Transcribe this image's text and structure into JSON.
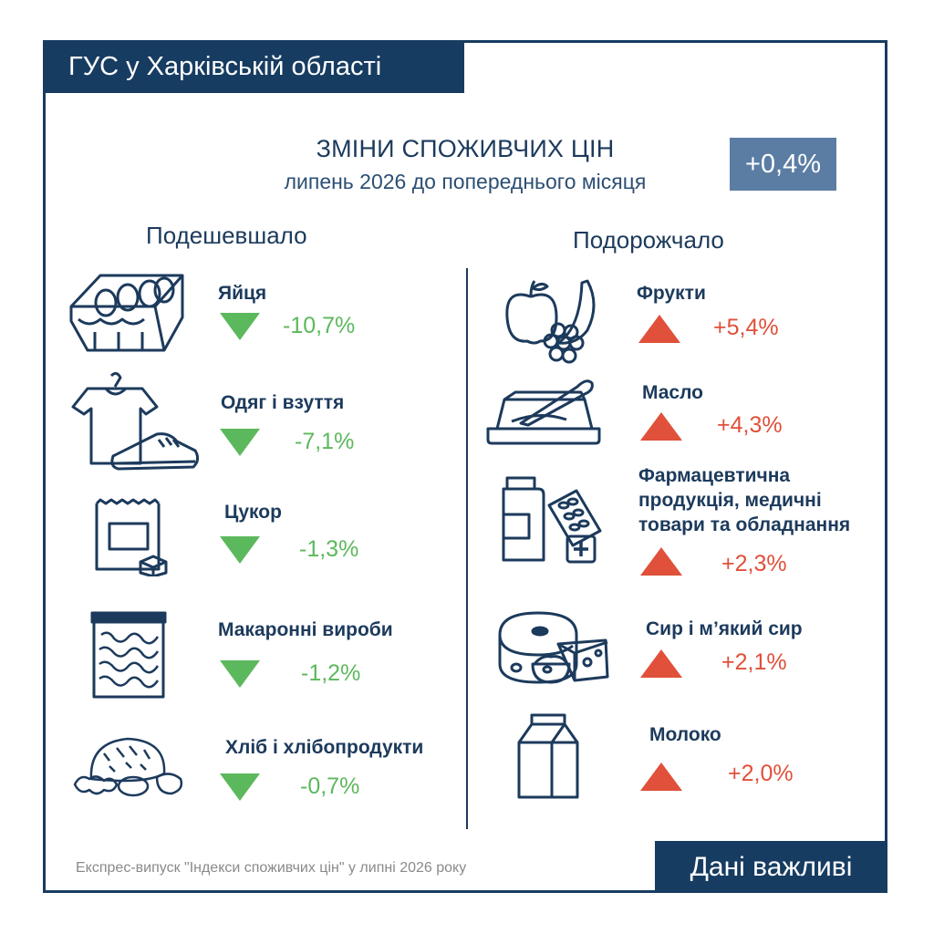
{
  "header": {
    "org": "ГУС у Харківській області"
  },
  "title": {
    "line1": "ЗМІНИ СПОЖИВЧИХ ЦІН",
    "line2": "липень 2026 до попереднього місяця",
    "total_change": "+0,4%"
  },
  "cheaper": {
    "heading": "Подешевшало",
    "items": [
      {
        "label": "Яйця",
        "value": "-10,7%",
        "icon": "egg-carton-icon"
      },
      {
        "label": "Одяг і взуття",
        "value": "-7,1%",
        "icon": "clothes-shoes-icon"
      },
      {
        "label": "Цукор",
        "value": "-1,3%",
        "icon": "sugar-bag-icon"
      },
      {
        "label": "Макаронні вироби",
        "value": "-1,2%",
        "icon": "pasta-pack-icon"
      },
      {
        "label": "Хліб і хлібопродукти",
        "value": "-0,7%",
        "icon": "bread-icon"
      }
    ]
  },
  "pricier": {
    "heading": "Подорожчало",
    "items": [
      {
        "label": "Фрукти",
        "value": "+5,4%",
        "icon": "fruits-icon"
      },
      {
        "label": "Масло",
        "value": "+4,3%",
        "icon": "butter-icon"
      },
      {
        "label_lines": [
          "Фармацевтична",
          "продукція, медичні",
          "товари та обладнання"
        ],
        "value": "+2,3%",
        "icon": "pharmacy-icon"
      },
      {
        "label": "Сир і м’який сир",
        "value": "+2,1%",
        "icon": "cheese-icon"
      },
      {
        "label": "Молоко",
        "value": "+2,0%",
        "icon": "milk-carton-icon"
      }
    ]
  },
  "colors": {
    "navy": "#173c61",
    "badge": "#5b7da4",
    "down": "#5cb85c",
    "up": "#e0503a"
  },
  "footer": {
    "note": "Експрес-випуск \"Індекси споживчих цін\" у липні 2026 року",
    "tag": "Дані важливі"
  }
}
